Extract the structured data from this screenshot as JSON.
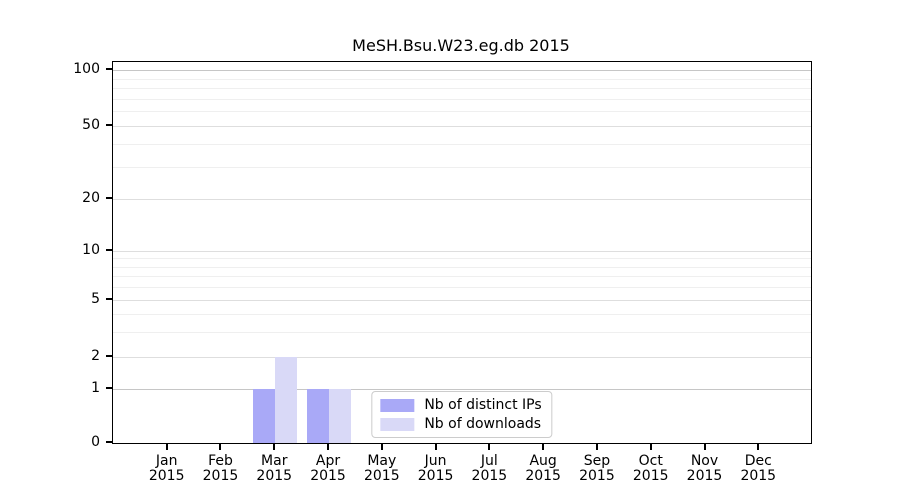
{
  "chart_data": {
    "type": "bar",
    "title": "MeSH.Bsu.W23.eg.db 2015",
    "categories": [
      "Jan 2015",
      "Feb 2015",
      "Mar 2015",
      "Apr 2015",
      "May 2015",
      "Jun 2015",
      "Jul 2015",
      "Aug 2015",
      "Sep 2015",
      "Oct 2015",
      "Nov 2015",
      "Dec 2015"
    ],
    "series": [
      {
        "name": "Nb of distinct IPs",
        "color": "#a9a9f7",
        "values": [
          0,
          0,
          1,
          1,
          0,
          0,
          0,
          0,
          0,
          0,
          0,
          0
        ]
      },
      {
        "name": "Nb of downloads",
        "color": "#d9d9f7",
        "values": [
          0,
          0,
          2,
          1,
          0,
          0,
          0,
          0,
          0,
          0,
          0,
          0
        ]
      }
    ],
    "xlabel": "",
    "ylabel": "",
    "yaxis": {
      "scale": "log-like with linear segment below 1",
      "ylim": [
        0,
        100
      ],
      "major_ticks": [
        {
          "value": 0,
          "frac": 0.0
        },
        {
          "value": 1,
          "frac": 0.1417
        },
        {
          "value": 2,
          "frac": 0.2257
        },
        {
          "value": 5,
          "frac": 0.3753
        },
        {
          "value": 10,
          "frac": 0.5039
        },
        {
          "value": 20,
          "frac": 0.6404
        },
        {
          "value": 50,
          "frac": 0.832
        },
        {
          "value": 100,
          "frac": 0.979
        }
      ],
      "minor_tick_values": [
        3,
        4,
        6,
        7,
        8,
        9,
        30,
        40,
        60,
        70,
        80,
        90
      ],
      "grid": "on"
    },
    "legend": {
      "position": "lower center",
      "entries": [
        "Nb of distinct IPs",
        "Nb of downloads"
      ]
    }
  },
  "colors": {
    "bar_dark": "#a9a9f7",
    "bar_light": "#d9d9f7",
    "grid_minor": "#efefef",
    "grid_major": "#dedede",
    "grid_edge": "#c6c6c6",
    "axis": "#000000"
  }
}
